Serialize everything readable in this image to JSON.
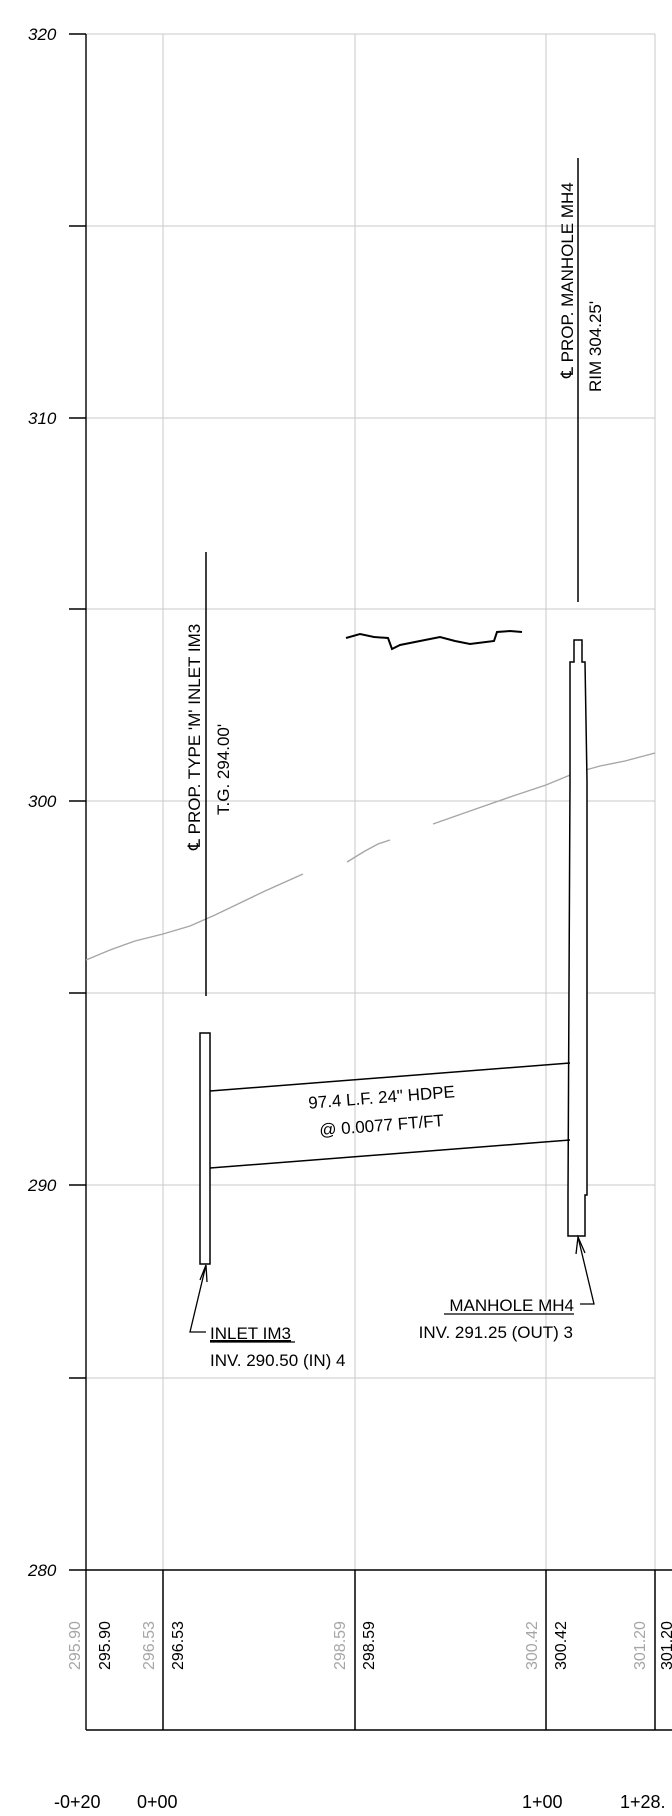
{
  "y_axis": {
    "labels": [
      "320",
      "310",
      "300",
      "290",
      "280"
    ],
    "range": [
      280,
      320
    ],
    "grid_step": 5
  },
  "stations": [
    "-0+20",
    "0+00",
    "1+00",
    "1+28."
  ],
  "elevation_table": {
    "existing_grade": [
      "295.90",
      "296.53",
      "298.59",
      "300.42",
      "301.20"
    ],
    "proposed_grade": [
      "295.90",
      "296.53",
      "298.59",
      "300.42",
      "301.20"
    ]
  },
  "structures": {
    "inlet_callout_title": "℄ PROP. TYPE 'M' INLET IM3",
    "inlet_callout_sub": "T.G. 294.00'",
    "manhole_callout_title": "℄ PROP. MANHOLE MH4",
    "manhole_callout_sub": "RIM 304.25'",
    "inlet_label": "INLET IM3",
    "inlet_inv": "INV. 290.50 (IN) 4",
    "manhole_label": "MANHOLE MH4",
    "manhole_inv": "INV. 291.25 (OUT) 3"
  },
  "pipe": {
    "length_label": "97.4 L.F. 24\" HDPE",
    "slope_label": "@ 0.0077 FT/FT"
  },
  "colors": {
    "grid": "#c8c8c8",
    "ground": "#a6a6a6",
    "linework": "#000000"
  }
}
